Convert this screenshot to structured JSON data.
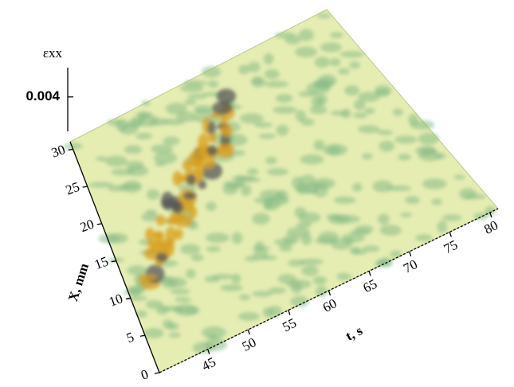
{
  "chart_data": {
    "type": "surface",
    "xlabel": "t, s",
    "xlim": [
      39,
      81
    ],
    "xticks": [
      45,
      50,
      55,
      60,
      65,
      70,
      75,
      80
    ],
    "ylabel": "X, mm",
    "ylim": [
      0,
      31
    ],
    "yticks": [
      0,
      5,
      10,
      15,
      20,
      25,
      30
    ],
    "zlabel": "εxx",
    "zlim": [
      0,
      0.0074
    ],
    "zticks": [
      0.004
    ],
    "colors": [
      "#e6edb3",
      "#86b985",
      "#d89f1c"
    ]
  }
}
